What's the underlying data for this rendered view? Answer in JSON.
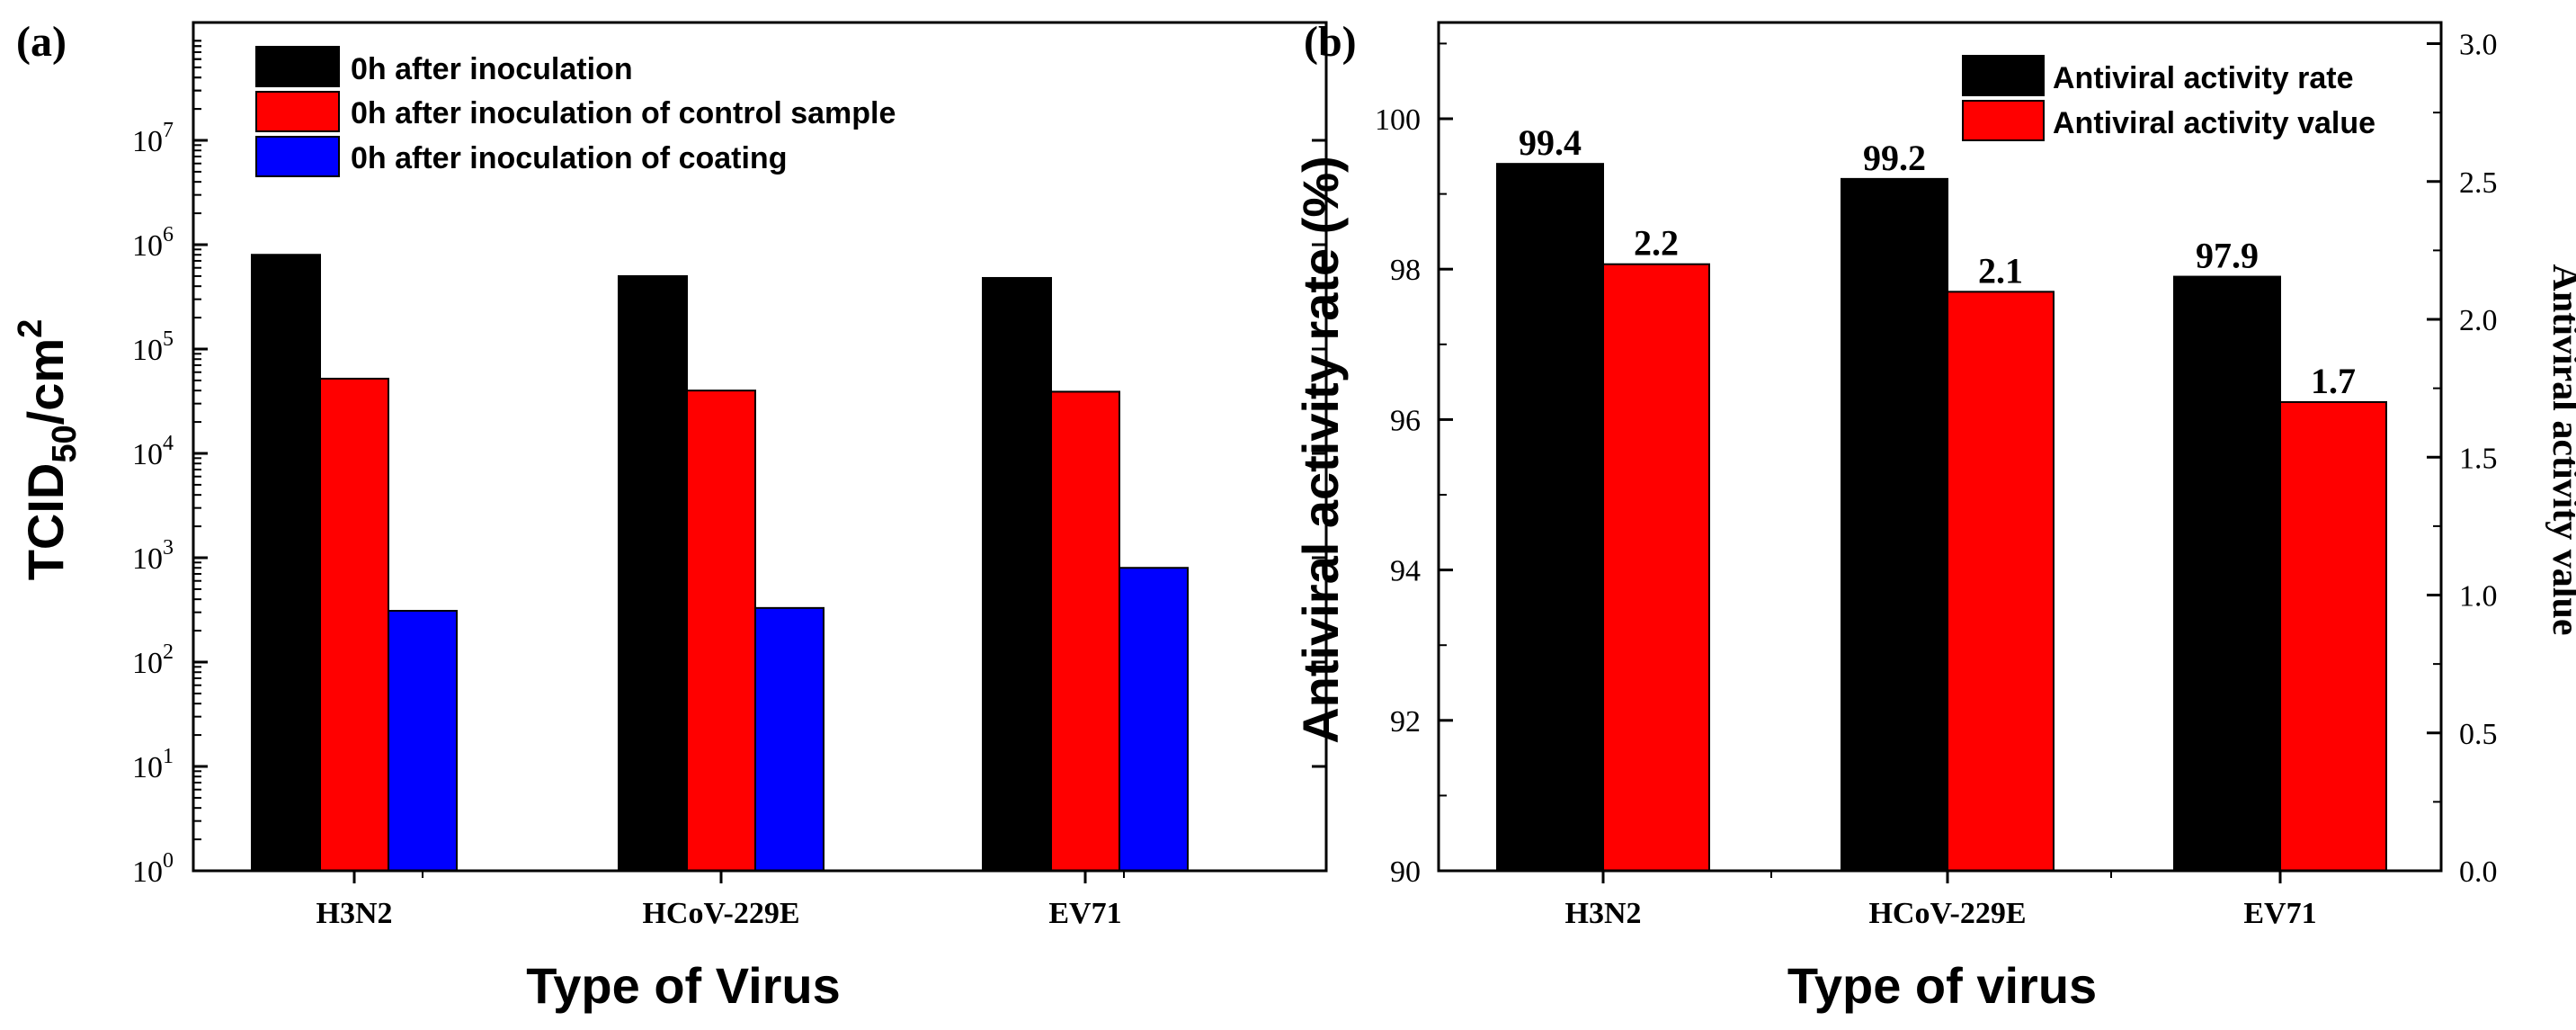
{
  "chart_data": [
    {
      "panel_label": "(a)",
      "type": "bar",
      "scale": "log",
      "categories": [
        "H3N2",
        "HCoV-229E",
        "EV71"
      ],
      "series": [
        {
          "name": "0h after inoculation",
          "color": "#000000",
          "values": [
            800000,
            500000,
            480000
          ]
        },
        {
          "name": "0h after inoculation of control sample",
          "color": "#ff0000",
          "values": [
            52000,
            40000,
            39000
          ]
        },
        {
          "name": "0h after inoculation of coating",
          "color": "#0000ff",
          "values": [
            310,
            330,
            800
          ]
        }
      ],
      "ylim": [
        1,
        100000000
      ],
      "ytick_base": "10",
      "ytick_exponents": [
        "0",
        "1",
        "2",
        "3",
        "4",
        "5",
        "6",
        "7"
      ],
      "ylabel_main": "TCID",
      "ylabel_sub": "50",
      "ylabel_unit": "/cm",
      "ylabel_sup": "2",
      "xlabel": "Type of Virus",
      "legend_position": "top-left"
    },
    {
      "panel_label": "(b)",
      "type": "bar",
      "categories": [
        "H3N2",
        "HCoV-229E",
        "EV71"
      ],
      "series": [
        {
          "name": "Antiviral activity rate",
          "axis": "left",
          "color": "#000000",
          "values": [
            99.4,
            99.2,
            97.9
          ],
          "labels": [
            "99.4",
            "99.2",
            "97.9"
          ]
        },
        {
          "name": "Antiviral activity value",
          "axis": "right",
          "color": "#ff0000",
          "values": [
            2.2,
            2.1,
            1.7
          ],
          "labels": [
            "2.2",
            "2.1",
            "1.7"
          ]
        }
      ],
      "ylim_left": [
        90,
        101
      ],
      "yticks_left": [
        "90",
        "92",
        "94",
        "96",
        "98",
        "100"
      ],
      "ylim_right": [
        0,
        3
      ],
      "yticks_right": [
        "0.0",
        "0.5",
        "1.0",
        "1.5",
        "2.0",
        "2.5",
        "3.0"
      ],
      "ylabel_left": "Antiviral activity rate (%)",
      "ylabel_right": "Antiviral activity value",
      "xlabel": "Type of virus",
      "legend_position": "top-right"
    }
  ]
}
